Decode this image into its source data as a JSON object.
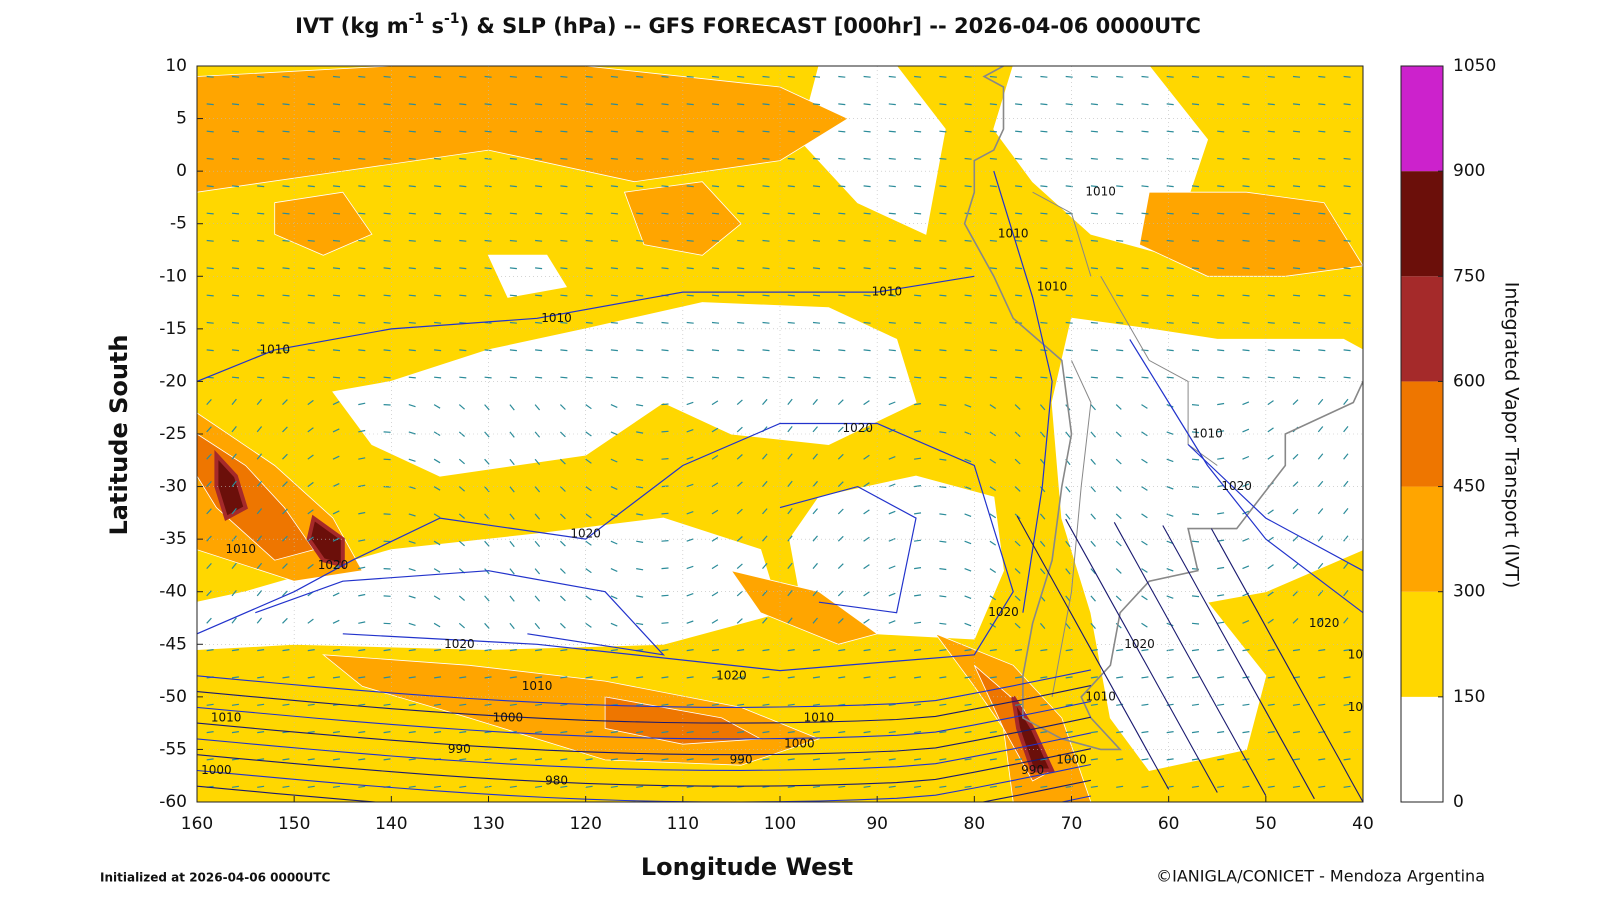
{
  "map": {
    "title_parts": [
      "IVT (kg m",
      "-1",
      " s",
      "-1",
      ") & SLP (hPa) -- GFS FORECAST [000hr] -- 2026-04-06 0000UTC"
    ],
    "x_label": "Longitude West",
    "y_label": "Latitude South",
    "xlim": [
      160,
      40
    ],
    "ylim": [
      -60,
      10
    ],
    "xticks": [
      160,
      150,
      140,
      130,
      120,
      110,
      100,
      90,
      80,
      70,
      60,
      50,
      40
    ],
    "yticks": [
      10,
      5,
      0,
      -5,
      -10,
      -15,
      -20,
      -25,
      -30,
      -35,
      -40,
      -45,
      -50,
      -55,
      -60
    ],
    "grid": true,
    "colorbar": {
      "label": "Integrated Vapor Transport (IVT)",
      "levels": [
        0,
        150,
        300,
        450,
        600,
        750,
        900,
        1050
      ],
      "colors": [
        "#ffffff",
        "#ffd700",
        "#ffa500",
        "#ee7600",
        "#a52a2a",
        "#6b0f0a",
        "#cc22cc"
      ]
    },
    "contour_labels": [
      1010,
      1010,
      1010,
      1010,
      1020,
      1020,
      1020,
      1020,
      1010,
      1000,
      990,
      980,
      1020,
      1010,
      1000,
      990,
      1010,
      1000,
      1020,
      1010,
      1000,
      1020,
      1010,
      1000,
      990,
      1020,
      1020,
      1010,
      1010,
      1010,
      1010
    ],
    "footer_left": "Initialized at 2026-04-06 0000UTC",
    "footer_right": "©IANIGLA/CONICET - Mendoza Argentina"
  }
}
